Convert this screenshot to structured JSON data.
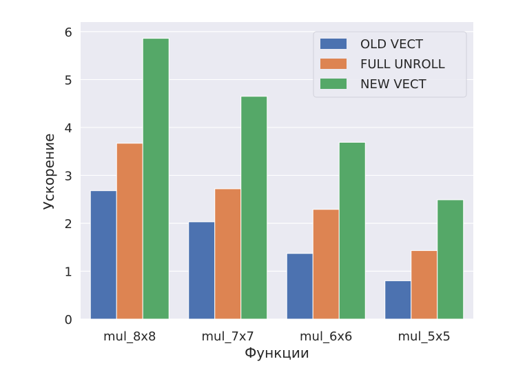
{
  "chart_data": {
    "type": "bar",
    "xlabel": "Функции",
    "ylabel": "Ускорение",
    "categories": [
      "mul_8x8",
      "mul_7x7",
      "mul_6x6",
      "mul_5x5"
    ],
    "ylim": [
      0,
      6.2
    ],
    "yticks": [
      "0",
      "1",
      "2",
      "3",
      "4",
      "5",
      "6"
    ],
    "grid": true,
    "legend_position": "top-right",
    "background": "#eaeaf2",
    "series": [
      {
        "name": "OLD VECT",
        "color": "#4c72b0",
        "values": [
          2.68,
          2.03,
          1.37,
          0.8
        ]
      },
      {
        "name": "FULL UNROLL",
        "color": "#dd8452",
        "values": [
          3.67,
          2.72,
          2.29,
          1.43
        ]
      },
      {
        "name": "NEW VECT",
        "color": "#55a868",
        "values": [
          5.86,
          4.65,
          3.69,
          2.49
        ]
      }
    ]
  }
}
